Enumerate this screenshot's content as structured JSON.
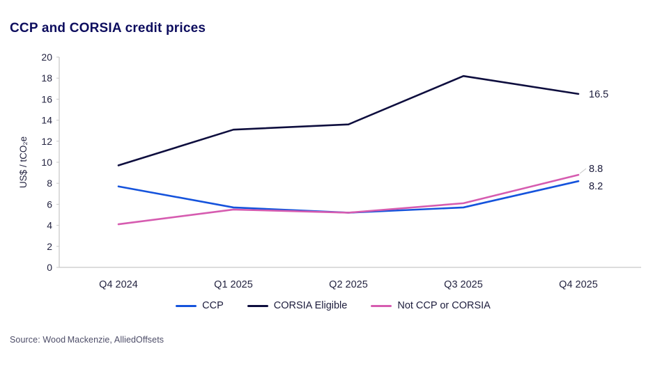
{
  "title": "CCP and CORSIA credit prices",
  "source": "Source: Wood Mackenzie, AlliedOffsets",
  "colors": {
    "title": "#0d0d5e",
    "axis": "#c6c6c6",
    "tick_text": "#232340",
    "label_text": "#1c1c3c",
    "legend_text": "#1c1c3c",
    "source_text": "#4d4d68"
  },
  "chart_data": {
    "type": "line",
    "title": "CCP and CORSIA credit prices",
    "categories": [
      "Q4 2024",
      "Q1 2025",
      "Q2 2025",
      "Q3 2025",
      "Q4 2025"
    ],
    "xlabel": "",
    "ylabel": "US$ / tCO₂e",
    "ylim": [
      0,
      20
    ],
    "ytick_step": 2,
    "grid": false,
    "legend_position": "bottom",
    "series": [
      {
        "name": "CCP",
        "color": "#1553dc",
        "values": [
          7.7,
          5.7,
          5.2,
          5.7,
          8.2
        ],
        "end_label": "8.2",
        "label_dy": 7,
        "label_connector": false
      },
      {
        "name": "CORSIA Eligible",
        "color": "#0e0e3e",
        "values": [
          9.7,
          13.1,
          13.6,
          18.2,
          16.5
        ],
        "end_label": "16.5",
        "label_dy": 0,
        "label_connector": false
      },
      {
        "name": "Not CCP or CORSIA",
        "color": "#d65cb0",
        "values": [
          4.1,
          5.5,
          5.2,
          6.1,
          8.8
        ],
        "end_label": "8.8",
        "label_dy": -9,
        "label_connector": true
      }
    ]
  }
}
